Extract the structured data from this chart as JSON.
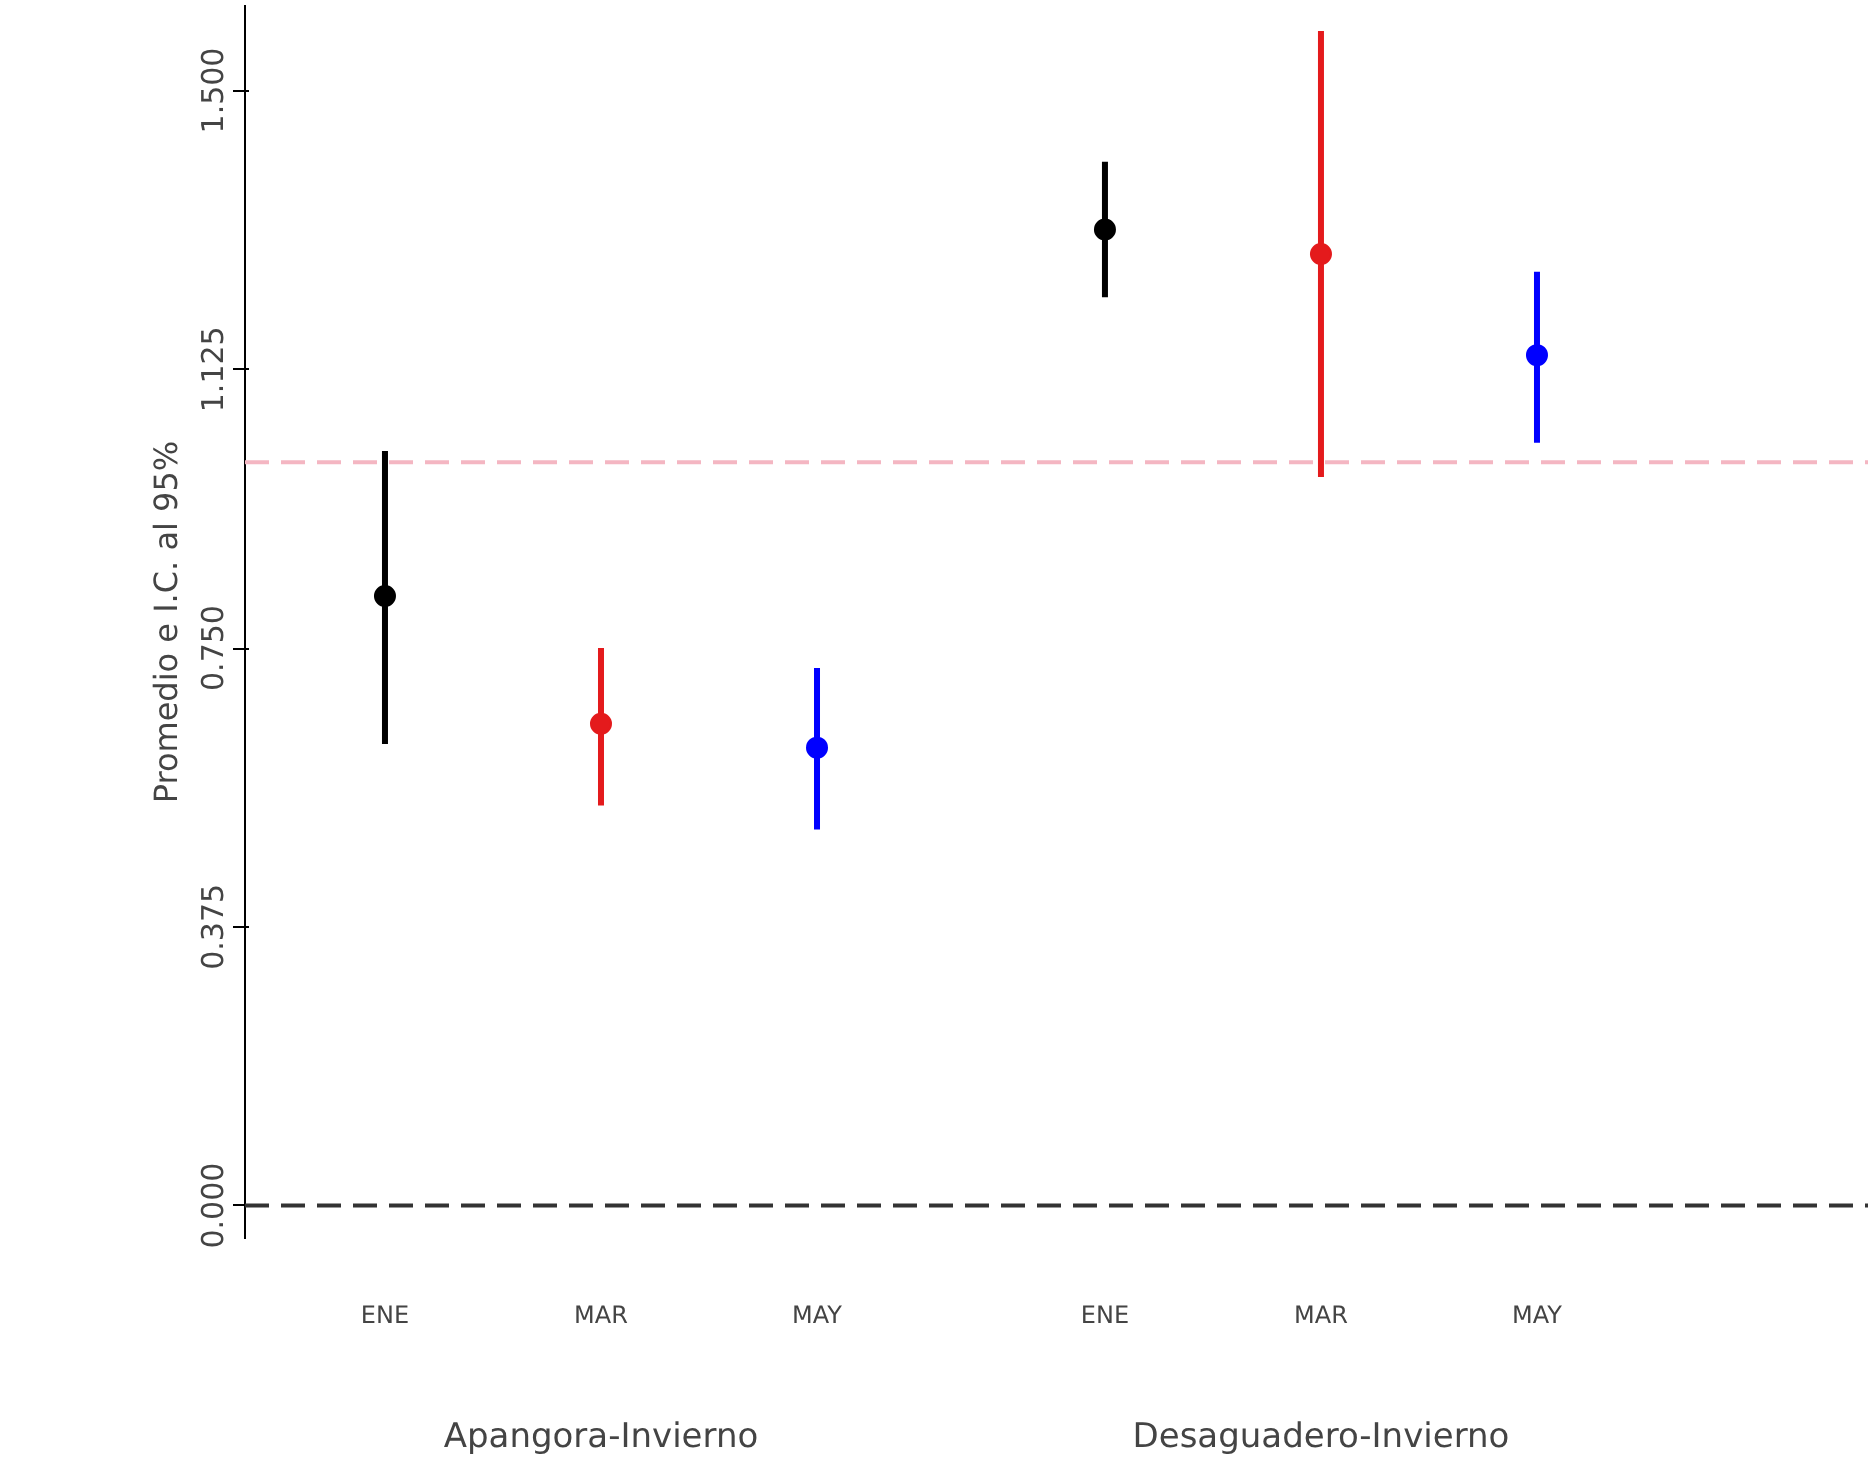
{
  "chart_data": {
    "type": "scatter",
    "categories": [
      "ENE",
      "MAR",
      "MAY",
      "ENE",
      "MAR",
      "MAY"
    ],
    "values": [
      0.82,
      0.648,
      0.616,
      1.313,
      1.28,
      1.144
    ],
    "errors": [
      [
        0.621,
        1.015
      ],
      [
        0.538,
        0.75
      ],
      [
        0.506,
        0.723
      ],
      [
        1.222,
        1.404
      ],
      [
        0.98,
        1.58
      ],
      [
        1.026,
        1.256
      ]
    ],
    "colors": [
      "#000000",
      "#e41a1c",
      "#0000ff",
      "#000000",
      "#e41a1c",
      "#0000ff"
    ],
    "ylabel": "Promedio e I.C. al 95%",
    "ylim": [
      -0.045,
      1.615
    ],
    "yticks": [
      {
        "value": 0,
        "label": "0.000"
      },
      {
        "value": 0.375,
        "label": "0.375"
      },
      {
        "value": 0.75,
        "label": "0.750"
      },
      {
        "value": 1.125,
        "label": "1.125"
      },
      {
        "value": 1.5,
        "label": "1.500"
      }
    ],
    "annotations": [
      "Apangora-Invierno",
      "Desaguadero-Invierno"
    ],
    "ref_lines": [
      {
        "axis": "y",
        "value": 1.0,
        "label": null,
        "color": "#f4b6c2",
        "line_style": "dashed"
      },
      {
        "axis": "y",
        "value": 0,
        "label": null,
        "color": "#333333",
        "line_style": "dashed"
      }
    ],
    "marker": "circle",
    "grid": false
  }
}
